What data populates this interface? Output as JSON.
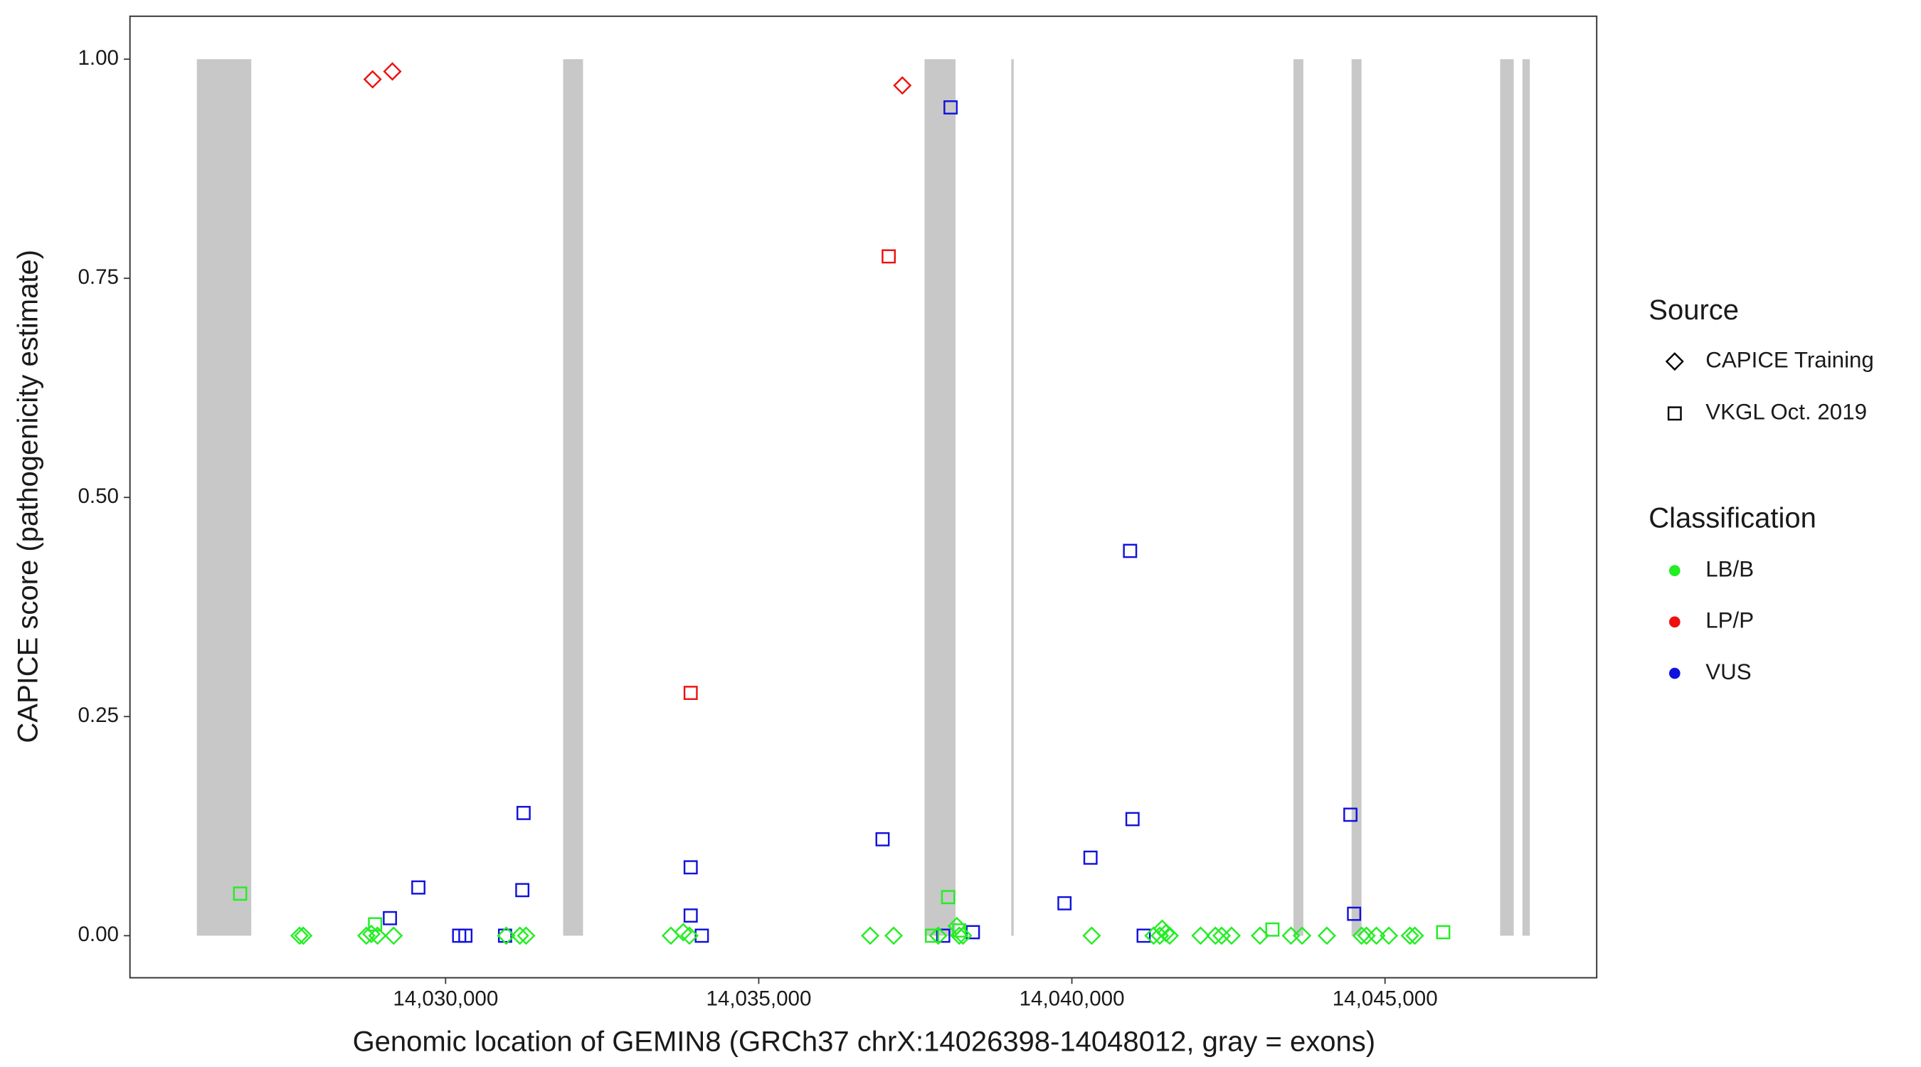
{
  "chart_data": {
    "type": "scatter",
    "x_label": "Genomic location of GEMIN8 (GRCh37 chrX:14026398-14048012, gray = exons)",
    "y_label": "CAPICE score (pathogenicity estimate)",
    "xlim": [
      14024960,
      14048380
    ],
    "ylim": [
      -0.048,
      1.049
    ],
    "xticks": [
      {
        "value": 14030000,
        "label": "14,030,000"
      },
      {
        "value": 14035000,
        "label": "14,035,000"
      },
      {
        "value": 14040000,
        "label": "14,040,000"
      },
      {
        "value": 14045000,
        "label": "14,045,000"
      }
    ],
    "yticks": [
      {
        "value": 0,
        "label": "0.00"
      },
      {
        "value": 0.25,
        "label": "0.25"
      },
      {
        "value": 0.5,
        "label": "0.50"
      },
      {
        "value": 0.75,
        "label": "0.75"
      },
      {
        "value": 1,
        "label": "1.00"
      }
    ],
    "exon_color": "#c8c8c8",
    "exon_height": [
      0,
      1
    ],
    "exons": [
      [
        14026028,
        14026897
      ],
      [
        14031877,
        14032194
      ],
      [
        14037648,
        14038142
      ],
      [
        14039032,
        14039071
      ],
      [
        14043538,
        14043696
      ],
      [
        14044466,
        14044625
      ],
      [
        14046838,
        14047055
      ],
      [
        14047194,
        14047312
      ]
    ],
    "legend": {
      "source_title": "Source",
      "sources": [
        {
          "name": "CAPICE Training",
          "marker": "diamond"
        },
        {
          "name": "VKGL Oct. 2019",
          "marker": "square"
        }
      ],
      "class_title": "Classification",
      "classes": [
        {
          "name": "LB/B",
          "color": "#22ee22"
        },
        {
          "name": "LP/P",
          "color": "#ee1111"
        },
        {
          "name": "VUS",
          "color": "#1111dd"
        }
      ]
    },
    "series": [
      {
        "source": 0,
        "class": 1,
        "x": [
          14028834,
          14029150,
          14037293
        ],
        "values": [
          0.977,
          0.986,
          0.97
        ]
      },
      {
        "source": 1,
        "class": 1,
        "x": [
          14037075,
          14033913
        ],
        "values": [
          0.775,
          0.277
        ]
      },
      {
        "source": 1,
        "class": 2,
        "x": [
          14038063,
          14040929,
          14031245,
          14044447,
          14040968,
          14036977,
          14040297,
          14033913,
          14029565,
          14031225,
          14039882,
          14033913,
          14044506,
          14029111,
          14038419,
          14030217,
          14030316,
          14030949,
          14034091,
          14037945,
          14041146
        ],
        "values": [
          0.945,
          0.439,
          0.14,
          0.138,
          0.133,
          0.11,
          0.089,
          0.078,
          0.055,
          0.052,
          0.037,
          0.023,
          0.025,
          0.02,
          0.004,
          0,
          0,
          0,
          0,
          0,
          0
        ]
      },
      {
        "source": 1,
        "class": 0,
        "x": [
          14026719,
          14038024,
          14028874,
          14043202,
          14045929,
          14037767,
          14038202
        ],
        "values": [
          0.048,
          0.044,
          0.013,
          0.007,
          0.004,
          0,
          0.006
        ]
      },
      {
        "source": 0,
        "class": 0,
        "x": [
          14027668,
          14027727,
          14028735,
          14028814,
          14028912,
          14029170,
          14030968,
          14031186,
          14031285,
          14033597,
          14033794,
          14033893,
          14036779,
          14037154,
          14037866,
          14038202,
          14038261,
          14040316,
          14041304,
          14041403,
          14041502,
          14041561,
          14042055,
          14042292,
          14042391,
          14042549,
          14043004,
          14043498,
          14043676,
          14044071,
          14044625,
          14044704,
          14044862,
          14045061,
          14045397,
          14045476,
          14038162,
          14041442
        ],
        "values": [
          0,
          0,
          0,
          0.002,
          0,
          0,
          0,
          0,
          0,
          0,
          0.004,
          0,
          0,
          0,
          0,
          0,
          0,
          0,
          0,
          0,
          0.003,
          0,
          0,
          0,
          0,
          0,
          0,
          0,
          0,
          0,
          0,
          0,
          0,
          0,
          0,
          0,
          0.011,
          0.008
        ]
      }
    ]
  }
}
